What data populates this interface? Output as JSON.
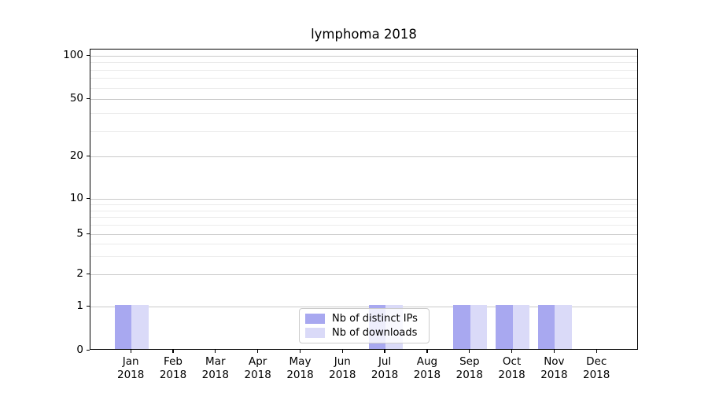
{
  "title": "lymphoma 2018",
  "chart_data": {
    "type": "bar",
    "title": "lymphoma 2018",
    "x_categories": [
      {
        "month": "Jan",
        "year": "2018"
      },
      {
        "month": "Feb",
        "year": "2018"
      },
      {
        "month": "Mar",
        "year": "2018"
      },
      {
        "month": "Apr",
        "year": "2018"
      },
      {
        "month": "May",
        "year": "2018"
      },
      {
        "month": "Jun",
        "year": "2018"
      },
      {
        "month": "Jul",
        "year": "2018"
      },
      {
        "month": "Aug",
        "year": "2018"
      },
      {
        "month": "Sep",
        "year": "2018"
      },
      {
        "month": "Oct",
        "year": "2018"
      },
      {
        "month": "Nov",
        "year": "2018"
      },
      {
        "month": "Dec",
        "year": "2018"
      }
    ],
    "series": [
      {
        "name": "Nb of distinct IPs",
        "color": "#a8a8f0",
        "values": [
          1,
          0,
          0,
          0,
          0,
          0,
          1,
          0,
          1,
          1,
          1,
          0
        ]
      },
      {
        "name": "Nb of downloads",
        "color": "#dadaf8",
        "values": [
          1,
          0,
          0,
          0,
          0,
          0,
          1,
          0,
          1,
          1,
          1,
          0
        ]
      }
    ],
    "yscale": "symlog",
    "ylim": [
      0,
      115
    ],
    "yticks_major": [
      0,
      1,
      2,
      5,
      10,
      20,
      50,
      100
    ],
    "yticks_minor": [
      3,
      4,
      6,
      7,
      8,
      9,
      30,
      40,
      60,
      70,
      80,
      90
    ],
    "grid": true,
    "legend_position": "lower center"
  }
}
